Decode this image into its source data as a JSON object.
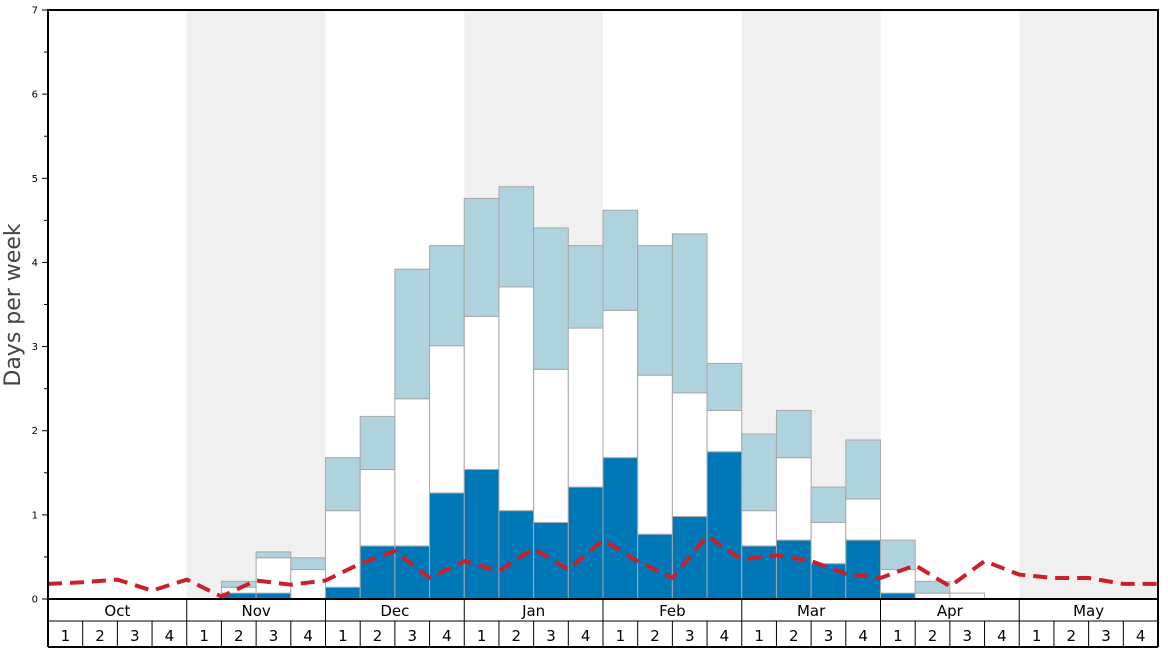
{
  "chart_data": {
    "type": "bar",
    "ylabel": "Days per week",
    "ylim": [
      0,
      7
    ],
    "y_ticks": [
      "0",
      "1",
      "2",
      "3",
      "4",
      "5",
      "6",
      "7"
    ],
    "months": [
      "Oct",
      "Nov",
      "Dec",
      "Jan",
      "Feb",
      "Mar",
      "Apr",
      "May"
    ],
    "week_labels": [
      "1",
      "2",
      "3",
      "4"
    ],
    "stacked": true,
    "grid": false,
    "series": [
      {
        "color": "#0077b6",
        "values": [
          0,
          0,
          0,
          0,
          0,
          0.07,
          0.07,
          0,
          0.14,
          0.63,
          0.63,
          1.26,
          1.54,
          1.05,
          0.91,
          1.33,
          1.68,
          0.77,
          0.98,
          1.75,
          0.63,
          0.7,
          0.42,
          0.7,
          0.07,
          0,
          0,
          0,
          0,
          0,
          0,
          0
        ]
      },
      {
        "color": "#ffffff",
        "values": [
          0,
          0,
          0,
          0,
          0,
          0.07,
          0.42,
          0.35,
          0.91,
          0.91,
          1.75,
          1.75,
          1.82,
          2.66,
          1.82,
          1.89,
          1.75,
          1.89,
          1.47,
          0.49,
          0.42,
          0.98,
          0.49,
          0.49,
          0.28,
          0.07,
          0.07,
          0,
          0,
          0,
          0,
          0
        ]
      },
      {
        "color": "#aed3df",
        "values": [
          0,
          0,
          0,
          0,
          0,
          0.07,
          0.07,
          0.14,
          0.63,
          0.63,
          1.54,
          1.19,
          1.4,
          1.19,
          1.68,
          0.98,
          1.19,
          1.54,
          1.89,
          0.56,
          0.91,
          0.56,
          0.42,
          0.7,
          0.35,
          0.14,
          0,
          0,
          0,
          0,
          0,
          0
        ]
      },
      {
        "type": "line",
        "color": "#cc1f2a",
        "dashed": true,
        "values": [
          0.18,
          0.2,
          0.23,
          0.1,
          0.23,
          0.03,
          0.22,
          0.17,
          0.22,
          0.42,
          0.57,
          0.25,
          0.45,
          0.33,
          0.6,
          0.35,
          0.7,
          0.45,
          0.25,
          0.75,
          0.47,
          0.52,
          0.45,
          0.3,
          0.25,
          0.4,
          0.15,
          0.45,
          0.29,
          0.25,
          0.25,
          0.18,
          0.18
        ]
      }
    ]
  }
}
